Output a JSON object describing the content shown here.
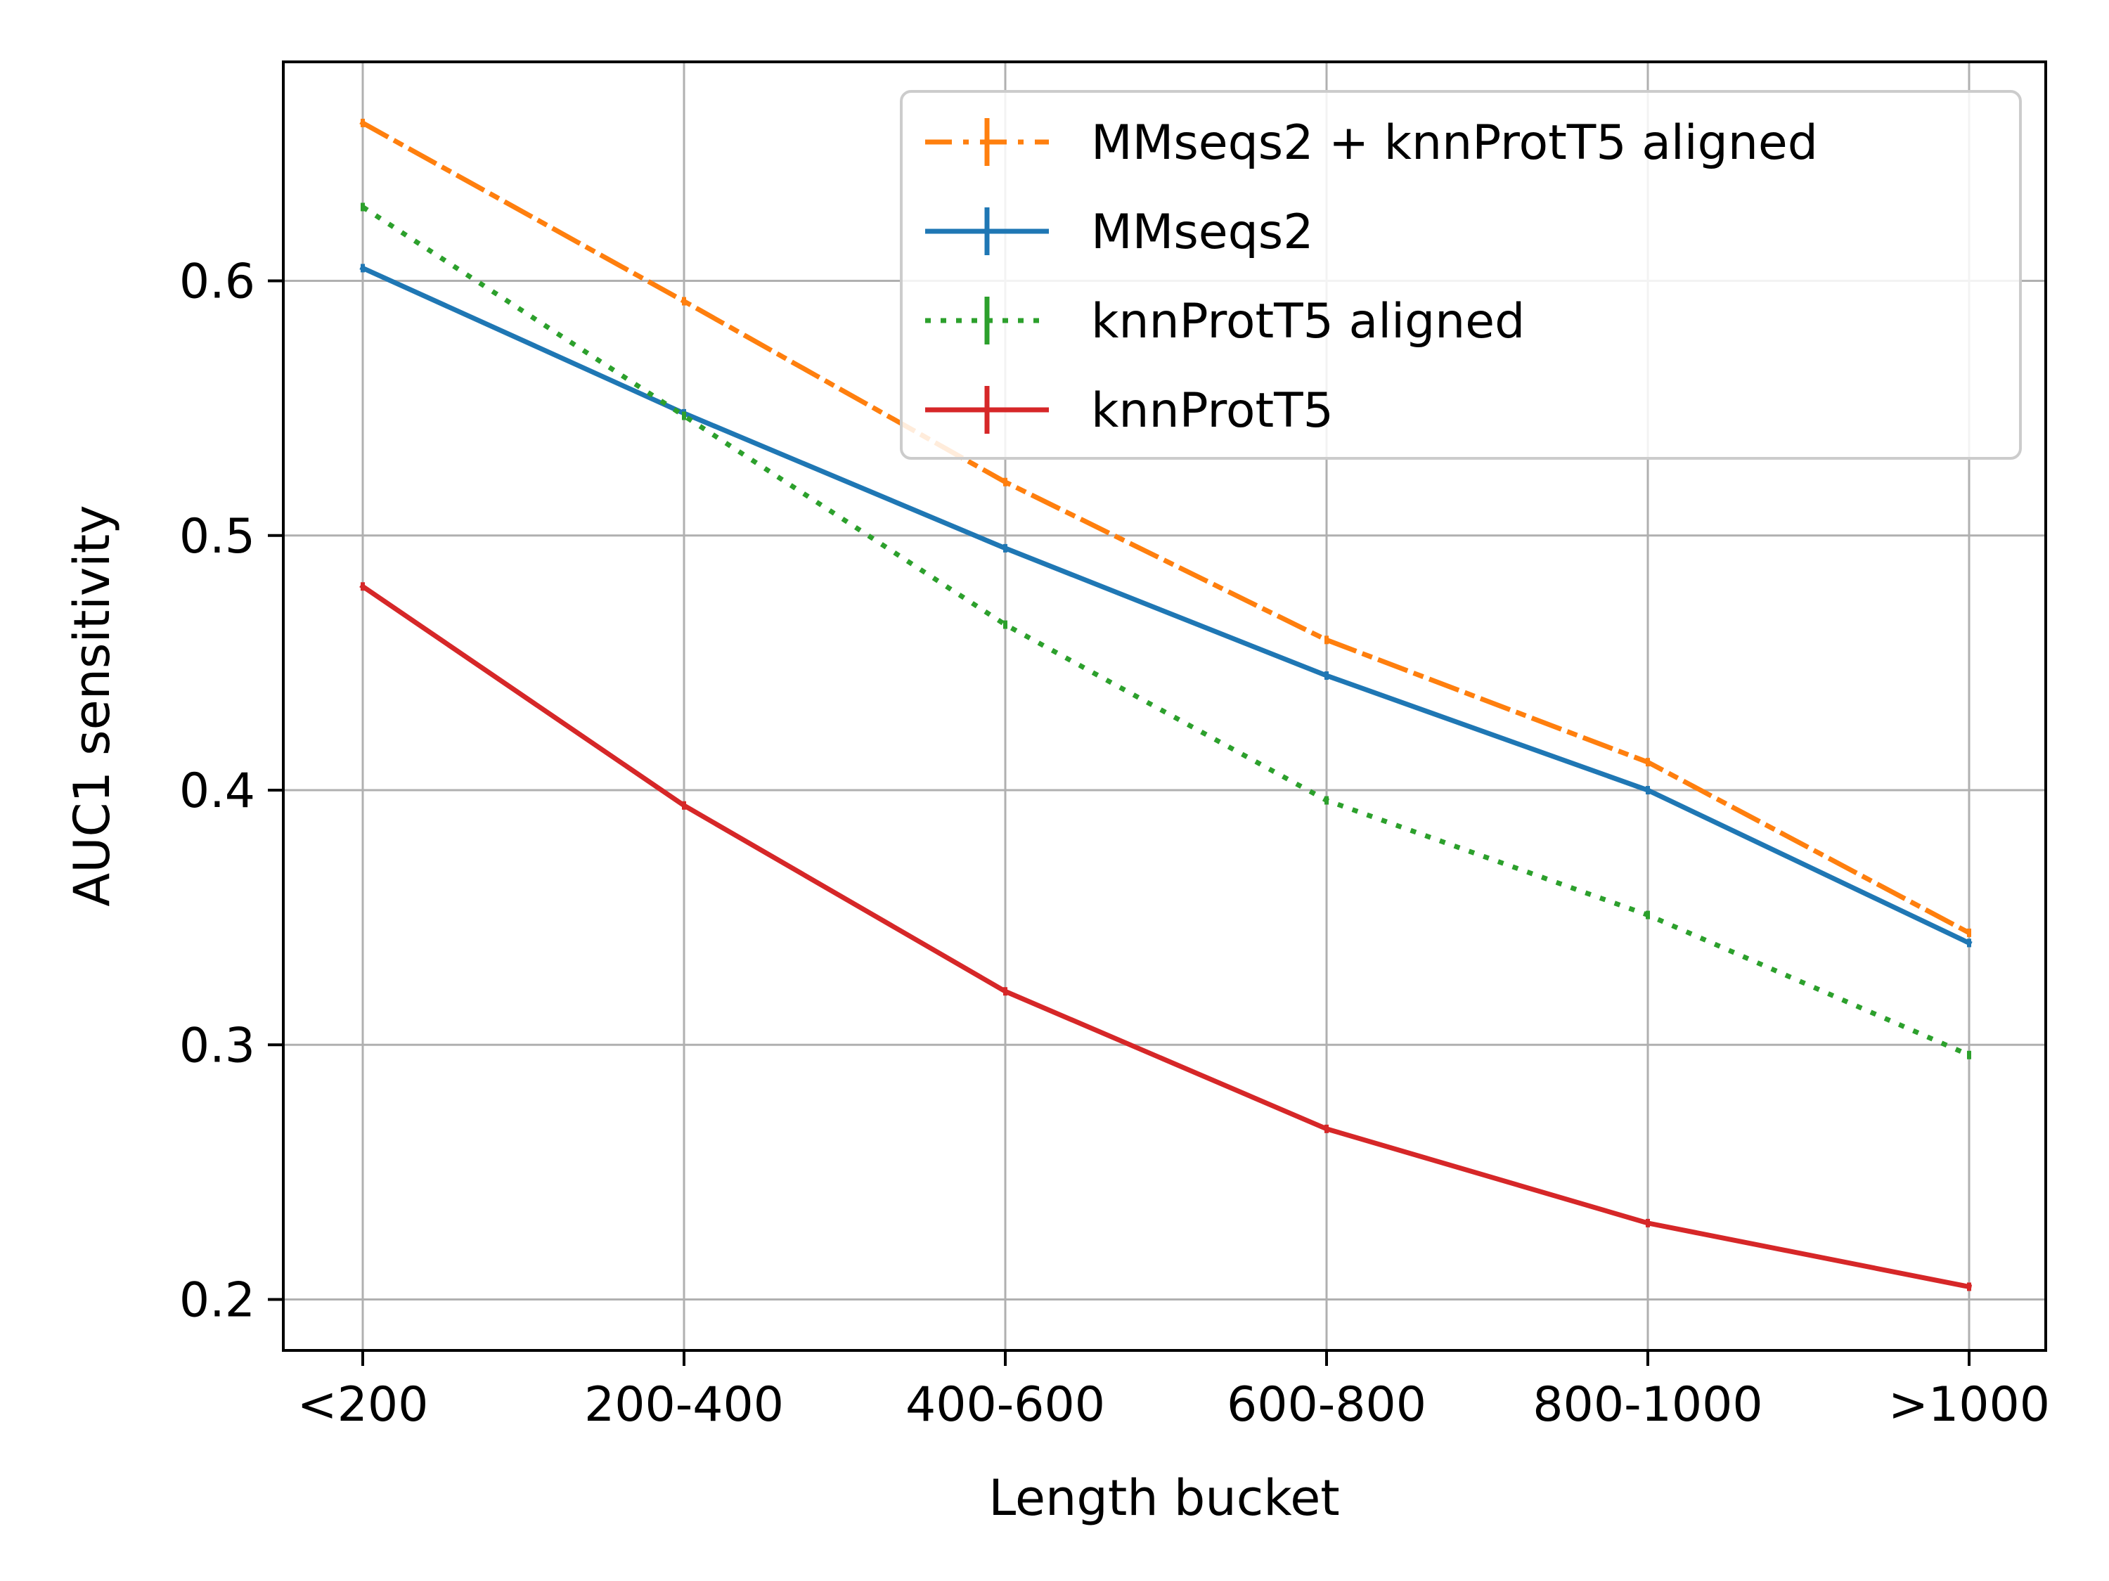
{
  "chart_data": {
    "type": "line",
    "xlabel": "Length bucket",
    "ylabel": "AUC1 sensitivity",
    "categories": [
      "<200",
      "200-400",
      "400-600",
      "600-800",
      "800-1000",
      ">1000"
    ],
    "ylim": [
      0.18,
      0.686
    ],
    "yticks": [
      0.2,
      0.3,
      0.4,
      0.5,
      0.6
    ],
    "ytick_labels": [
      "0.2",
      "0.3",
      "0.4",
      "0.5",
      "0.6"
    ],
    "grid": true,
    "legend_position": "top-right",
    "series": [
      {
        "name": "MMseqs2 + knnProtT5 aligned",
        "color": "#ff7f0e",
        "style": "dashdot",
        "values": [
          0.662,
          0.592,
          0.521,
          0.459,
          0.411,
          0.344
        ]
      },
      {
        "name": "MMseqs2",
        "color": "#1f77b4",
        "style": "solid",
        "values": [
          0.605,
          0.548,
          0.495,
          0.445,
          0.4,
          0.34
        ]
      },
      {
        "name": "knnProtT5 aligned",
        "color": "#2ca02c",
        "style": "dotted",
        "values": [
          0.629,
          0.547,
          0.465,
          0.396,
          0.351,
          0.296
        ]
      },
      {
        "name": "knnProtT5",
        "color": "#d62728",
        "style": "solid",
        "values": [
          0.48,
          0.394,
          0.321,
          0.267,
          0.23,
          0.205
        ]
      }
    ]
  }
}
